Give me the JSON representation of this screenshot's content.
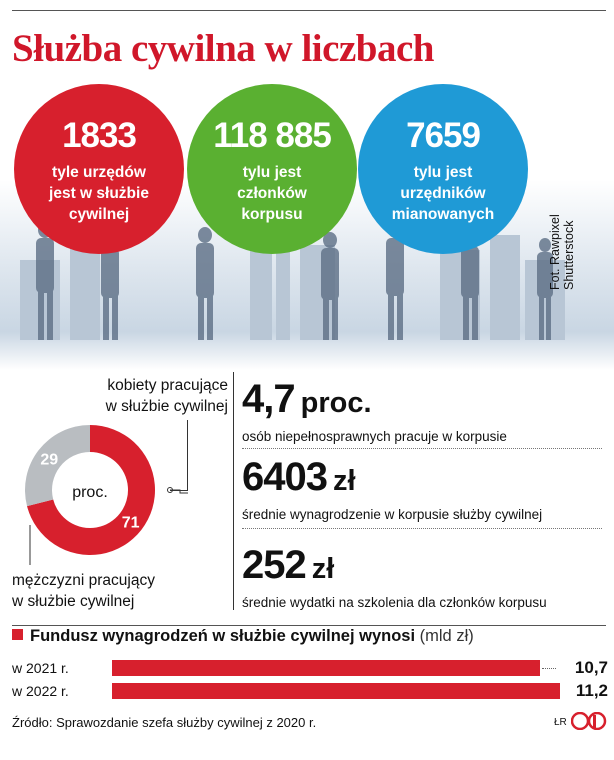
{
  "title": "Służba cywilna w liczbach",
  "photo_credit": "Fot. Rawpixel\nShutterstock",
  "colors": {
    "red": "#d7202d",
    "green": "#5ab031",
    "blue": "#1f9ad6",
    "grey": "#b9bdc1",
    "title": "#d0172a"
  },
  "circles": [
    {
      "value": "1833",
      "desc": "tyle urzędów\njest w służbie\ncywilnej"
    },
    {
      "value": "118 885",
      "desc": "tylu jest\nczłonków\nkorpusu"
    },
    {
      "value": "7659",
      "desc": "tylu jest\nurzędników\nmianowanych"
    }
  ],
  "stats": [
    {
      "value": "4,7",
      "unit": "proc.",
      "desc": "osób niepełnosprawnych pracuje w korpusie"
    },
    {
      "value": "6403",
      "unit": "zł",
      "desc": "średnie wynagrodzenie w korpusie służby cywilnej"
    },
    {
      "value": "252",
      "unit": "zł",
      "desc": "średnie wydatki na szkolenia dla członków korpusu"
    }
  ],
  "donut": {
    "label_top": "kobiety pracujące\nw służbie cywilnej",
    "label_bottom": "mężczyzni pracujący\nw służbie cywilnej",
    "center": "proc."
  },
  "fund": {
    "title_bold": "Fundusz wynagrodzeń w służbie cywilnej wynosi",
    "unit": "(mld zł)"
  },
  "chart_data": [
    {
      "type": "pie",
      "categories": [
        "kobiety pracujące w służbie cywilnej",
        "mężczyzni pracujący w służbie cywilnej"
      ],
      "values": [
        71,
        29
      ],
      "value_labels": [
        "71",
        "29"
      ],
      "colors": [
        "#d7202d",
        "#b9bdc1"
      ]
    },
    {
      "type": "bar",
      "orientation": "horizontal",
      "categories": [
        "w 2021 r.",
        "w 2022 r."
      ],
      "values": [
        10.7,
        11.2
      ],
      "value_labels": [
        "10,7",
        "11,2"
      ],
      "color": "#d7202d"
    }
  ],
  "source": "Źródło:  Sprawozdanie szefa służby cywilnej z 2020 r.",
  "initials": "ŁR"
}
